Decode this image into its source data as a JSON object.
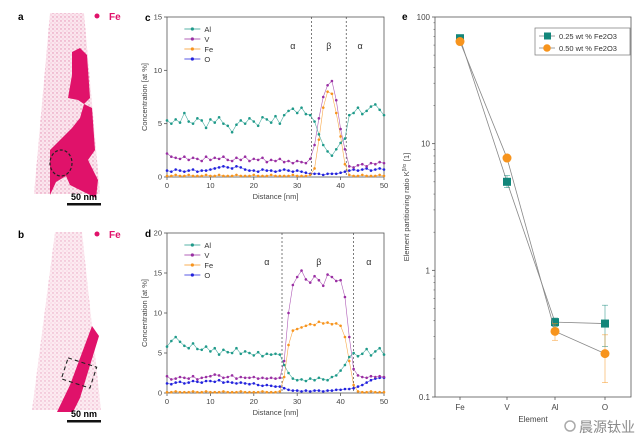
{
  "panels": {
    "a": {
      "label": "a",
      "legend": "Fe",
      "scale_bar": "50 nm"
    },
    "b": {
      "label": "b",
      "legend": "Fe",
      "scale_bar": "50 nm"
    }
  },
  "colors": {
    "Al": "#1f9a8a",
    "V": "#9a2fa3",
    "Fe": "#f7941d",
    "O": "#2222dd",
    "fe_map": "#e0126a",
    "fe_map_bg": "#f3b6cf",
    "series_025": "#12867a",
    "series_050": "#f7941d"
  },
  "watermark": "晨源钛业",
  "chart_data": [
    {
      "id": "c",
      "panel_label": "c",
      "type": "line",
      "xlabel": "Distance [nm]",
      "ylabel": "Concentration [at %]",
      "xlim": [
        0,
        50
      ],
      "ylim": [
        0,
        15
      ],
      "xticks": [
        0,
        10,
        20,
        30,
        40,
        50
      ],
      "yticks": [
        0,
        5,
        10,
        15
      ],
      "legend_position": "top-left",
      "phase_boundaries": [
        33.3,
        41.3
      ],
      "phase_labels": [
        {
          "text": "α",
          "x": 29
        },
        {
          "text": "β",
          "x": 37.3
        },
        {
          "text": "α",
          "x": 44.5
        }
      ],
      "x": [
        0,
        1,
        2,
        3,
        4,
        5,
        6,
        7,
        8,
        9,
        10,
        11,
        12,
        13,
        14,
        15,
        16,
        17,
        18,
        19,
        20,
        21,
        22,
        23,
        24,
        25,
        26,
        27,
        28,
        29,
        30,
        31,
        32,
        33,
        34,
        35,
        36,
        37,
        38,
        39,
        40,
        41,
        42,
        43,
        44,
        45,
        46,
        47,
        48,
        49,
        50
      ],
      "series": [
        {
          "name": "Al",
          "values": [
            5.3,
            5.0,
            5.4,
            5.1,
            6.0,
            5.2,
            5.0,
            5.5,
            5.3,
            4.6,
            5.4,
            5.1,
            5.6,
            5.0,
            4.8,
            4.2,
            4.9,
            5.3,
            5.0,
            5.5,
            5.2,
            4.8,
            5.6,
            5.4,
            5.1,
            5.7,
            5.0,
            5.8,
            6.2,
            6.4,
            6.0,
            6.5,
            5.9,
            5.8,
            5.2,
            4.0,
            3.0,
            2.4,
            2.0,
            2.6,
            3.2,
            3.6,
            5.8,
            6.0,
            6.5,
            5.9,
            6.2,
            6.6,
            6.8,
            6.3,
            5.8
          ]
        },
        {
          "name": "V",
          "values": [
            2.2,
            1.9,
            1.8,
            1.7,
            1.9,
            1.6,
            1.8,
            1.7,
            1.5,
            1.9,
            1.6,
            1.8,
            1.7,
            1.9,
            1.6,
            1.5,
            1.8,
            1.6,
            1.9,
            1.5,
            1.7,
            1.6,
            1.8,
            1.4,
            1.6,
            1.5,
            1.7,
            1.4,
            1.5,
            1.3,
            1.5,
            1.4,
            1.3,
            1.7,
            3.0,
            5.5,
            7.5,
            8.6,
            9.0,
            7.2,
            4.5,
            2.6,
            1.0,
            0.9,
            1.1,
            1.2,
            1.0,
            1.3,
            1.2,
            1.4,
            1.3
          ]
        },
        {
          "name": "Fe",
          "values": [
            0.1,
            0.1,
            0.2,
            0.1,
            0.1,
            0.2,
            0.1,
            0.1,
            0.1,
            0.2,
            0.1,
            0.1,
            0.2,
            0.1,
            0.1,
            0.1,
            0.2,
            0.1,
            0.1,
            0.1,
            0.2,
            0.1,
            0.1,
            0.1,
            0.2,
            0.1,
            0.1,
            0.1,
            0.1,
            0.2,
            0.1,
            0.1,
            0.1,
            0.2,
            0.8,
            3.5,
            6.5,
            8.0,
            7.8,
            6.0,
            3.8,
            1.2,
            0.2,
            0.1,
            0.1,
            0.2,
            0.1,
            0.1,
            0.1,
            0.2,
            0.1
          ]
        },
        {
          "name": "O",
          "values": [
            0.6,
            0.5,
            0.7,
            0.6,
            0.5,
            0.6,
            0.7,
            0.5,
            0.6,
            0.6,
            0.7,
            0.8,
            0.9,
            1.0,
            0.9,
            0.8,
            1.0,
            0.9,
            0.7,
            0.6,
            0.6,
            0.5,
            0.7,
            0.6,
            0.6,
            0.5,
            0.6,
            0.7,
            0.6,
            0.5,
            0.6,
            0.5,
            0.4,
            0.3,
            0.3,
            0.3,
            0.2,
            0.3,
            0.3,
            0.3,
            0.4,
            0.5,
            0.6,
            0.7,
            0.6,
            0.7,
            0.8,
            0.6,
            0.7,
            0.8,
            0.7
          ]
        }
      ]
    },
    {
      "id": "d",
      "panel_label": "d",
      "type": "line",
      "xlabel": "Distance [nm]",
      "ylabel": "Concentration [at %]",
      "xlim": [
        0,
        50
      ],
      "ylim": [
        0,
        20
      ],
      "xticks": [
        0,
        10,
        20,
        30,
        40,
        50
      ],
      "yticks": [
        0,
        5,
        10,
        15,
        20
      ],
      "legend_position": "top-left",
      "phase_boundaries": [
        26.5,
        43
      ],
      "phase_labels": [
        {
          "text": "α",
          "x": 23
        },
        {
          "text": "β",
          "x": 35
        },
        {
          "text": "α",
          "x": 46.5
        }
      ],
      "x": [
        0,
        1,
        2,
        3,
        4,
        5,
        6,
        7,
        8,
        9,
        10,
        11,
        12,
        13,
        14,
        15,
        16,
        17,
        18,
        19,
        20,
        21,
        22,
        23,
        24,
        25,
        26,
        27,
        28,
        29,
        30,
        31,
        32,
        33,
        34,
        35,
        36,
        37,
        38,
        39,
        40,
        41,
        42,
        43,
        44,
        45,
        46,
        47,
        48,
        49,
        50
      ],
      "series": [
        {
          "name": "Al",
          "values": [
            5.8,
            6.5,
            7.0,
            6.4,
            5.9,
            5.6,
            6.2,
            5.5,
            5.4,
            5.8,
            5.2,
            5.6,
            4.8,
            5.4,
            5.1,
            5.0,
            5.6,
            4.9,
            5.2,
            5.0,
            4.7,
            5.1,
            4.6,
            4.9,
            4.8,
            4.9,
            4.8,
            3.5,
            2.5,
            1.8,
            1.6,
            1.7,
            1.5,
            1.8,
            1.6,
            1.9,
            1.7,
            1.6,
            2.0,
            2.2,
            2.8,
            3.5,
            4.5,
            5.0,
            4.6,
            4.9,
            5.5,
            4.7,
            5.2,
            5.6,
            4.8
          ]
        },
        {
          "name": "V",
          "values": [
            2.1,
            1.7,
            1.8,
            2.0,
            1.9,
            1.8,
            2.1,
            1.7,
            1.9,
            2.0,
            2.1,
            2.3,
            2.2,
            1.9,
            2.0,
            2.2,
            1.8,
            2.0,
            1.9,
            1.9,
            2.0,
            1.8,
            1.9,
            1.8,
            1.9,
            1.8,
            1.9,
            4.0,
            10.0,
            13.5,
            14.5,
            15.3,
            14.2,
            13.8,
            14.6,
            14.1,
            13.4,
            14.8,
            14.5,
            14.0,
            14.1,
            12.0,
            7.0,
            3.0,
            2.2,
            2.0,
            1.9,
            2.1,
            2.0,
            2.1,
            2.0
          ]
        },
        {
          "name": "Fe",
          "values": [
            0.1,
            0.1,
            0.2,
            0.1,
            0.1,
            0.1,
            0.2,
            0.1,
            0.1,
            0.2,
            0.1,
            0.1,
            0.1,
            0.2,
            0.1,
            0.1,
            0.1,
            0.2,
            0.1,
            0.1,
            0.1,
            0.1,
            0.2,
            0.1,
            0.1,
            0.1,
            0.2,
            2.0,
            6.0,
            7.8,
            8.0,
            8.2,
            8.4,
            8.6,
            8.5,
            8.9,
            8.7,
            8.8,
            8.6,
            8.7,
            8.4,
            7.0,
            4.0,
            1.0,
            0.2,
            0.1,
            0.1,
            0.2,
            0.1,
            0.1,
            0.1
          ]
        },
        {
          "name": "O",
          "values": [
            1.2,
            1.1,
            1.3,
            1.4,
            1.2,
            1.3,
            1.5,
            1.4,
            1.3,
            1.5,
            1.5,
            1.4,
            1.6,
            1.3,
            1.4,
            1.3,
            1.2,
            1.3,
            1.2,
            1.1,
            1.2,
            1.0,
            0.9,
            1.0,
            0.9,
            0.8,
            0.8,
            0.6,
            0.4,
            0.3,
            0.3,
            0.2,
            0.3,
            0.2,
            0.3,
            0.3,
            0.2,
            0.3,
            0.3,
            0.4,
            0.4,
            0.5,
            0.5,
            0.6,
            0.8,
            1.0,
            1.3,
            1.6,
            1.8,
            1.9,
            1.9
          ]
        }
      ]
    },
    {
      "id": "e",
      "panel_label": "e",
      "type": "scatter",
      "xlabel": "Element",
      "ylabel": "Element partitioning ratio K",
      "ylabel_superscript": "β/α",
      "ylabel_unit": "[1]",
      "y_scale": "log",
      "ylim": [
        0.1,
        100
      ],
      "yticks": [
        0.1,
        1,
        10,
        100
      ],
      "categories": [
        "Fe",
        "V",
        "Al",
        "O"
      ],
      "legend_position": "top-right",
      "series": [
        {
          "name": "0.25 wt % Fe2O3",
          "marker": "square",
          "values": [
            68,
            5.0,
            0.39,
            0.38
          ],
          "err_low": [
            64,
            4.5,
            0.36,
            0.25
          ],
          "err_high": [
            72,
            5.6,
            0.42,
            0.53
          ]
        },
        {
          "name": "0.50 wt % Fe2O3",
          "marker": "circle",
          "values": [
            64,
            7.7,
            0.33,
            0.22
          ],
          "err_low": [
            61,
            7.3,
            0.28,
            0.13
          ],
          "err_high": [
            67,
            8.1,
            0.38,
            0.31
          ]
        }
      ]
    }
  ]
}
